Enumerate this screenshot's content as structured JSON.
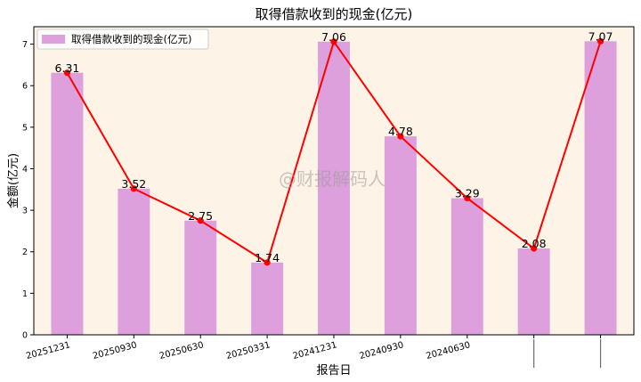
{
  "chart_data": {
    "type": "bar",
    "title": "取得借款收到的现金(亿元)",
    "xlabel": "报告日",
    "ylabel": "金额(亿元)",
    "legend": {
      "label": "取得借款收到的现金(亿元)",
      "placement": "top-left"
    },
    "watermark": "@财报解码人",
    "categories": [
      "20251231",
      "20250930",
      "20250630",
      "20250331",
      "20241231",
      "20240930",
      "20240630",
      "",
      ""
    ],
    "values": [
      6.31,
      3.52,
      2.75,
      1.74,
      7.06,
      4.78,
      3.29,
      2.08,
      7.07
    ],
    "value_labels": [
      "6.31",
      "3.52",
      "2.75",
      "1.74",
      "7.06",
      "4.78",
      "3.29",
      "2.08",
      "7.07"
    ],
    "ylim": [
      0,
      7.42
    ],
    "yticks": [
      0,
      1,
      2,
      3,
      4,
      5,
      6,
      7
    ],
    "grid": false,
    "colors": {
      "bar": "#dda0dd",
      "line": "#ff0000",
      "plot_background": "#fdf3e6"
    }
  }
}
